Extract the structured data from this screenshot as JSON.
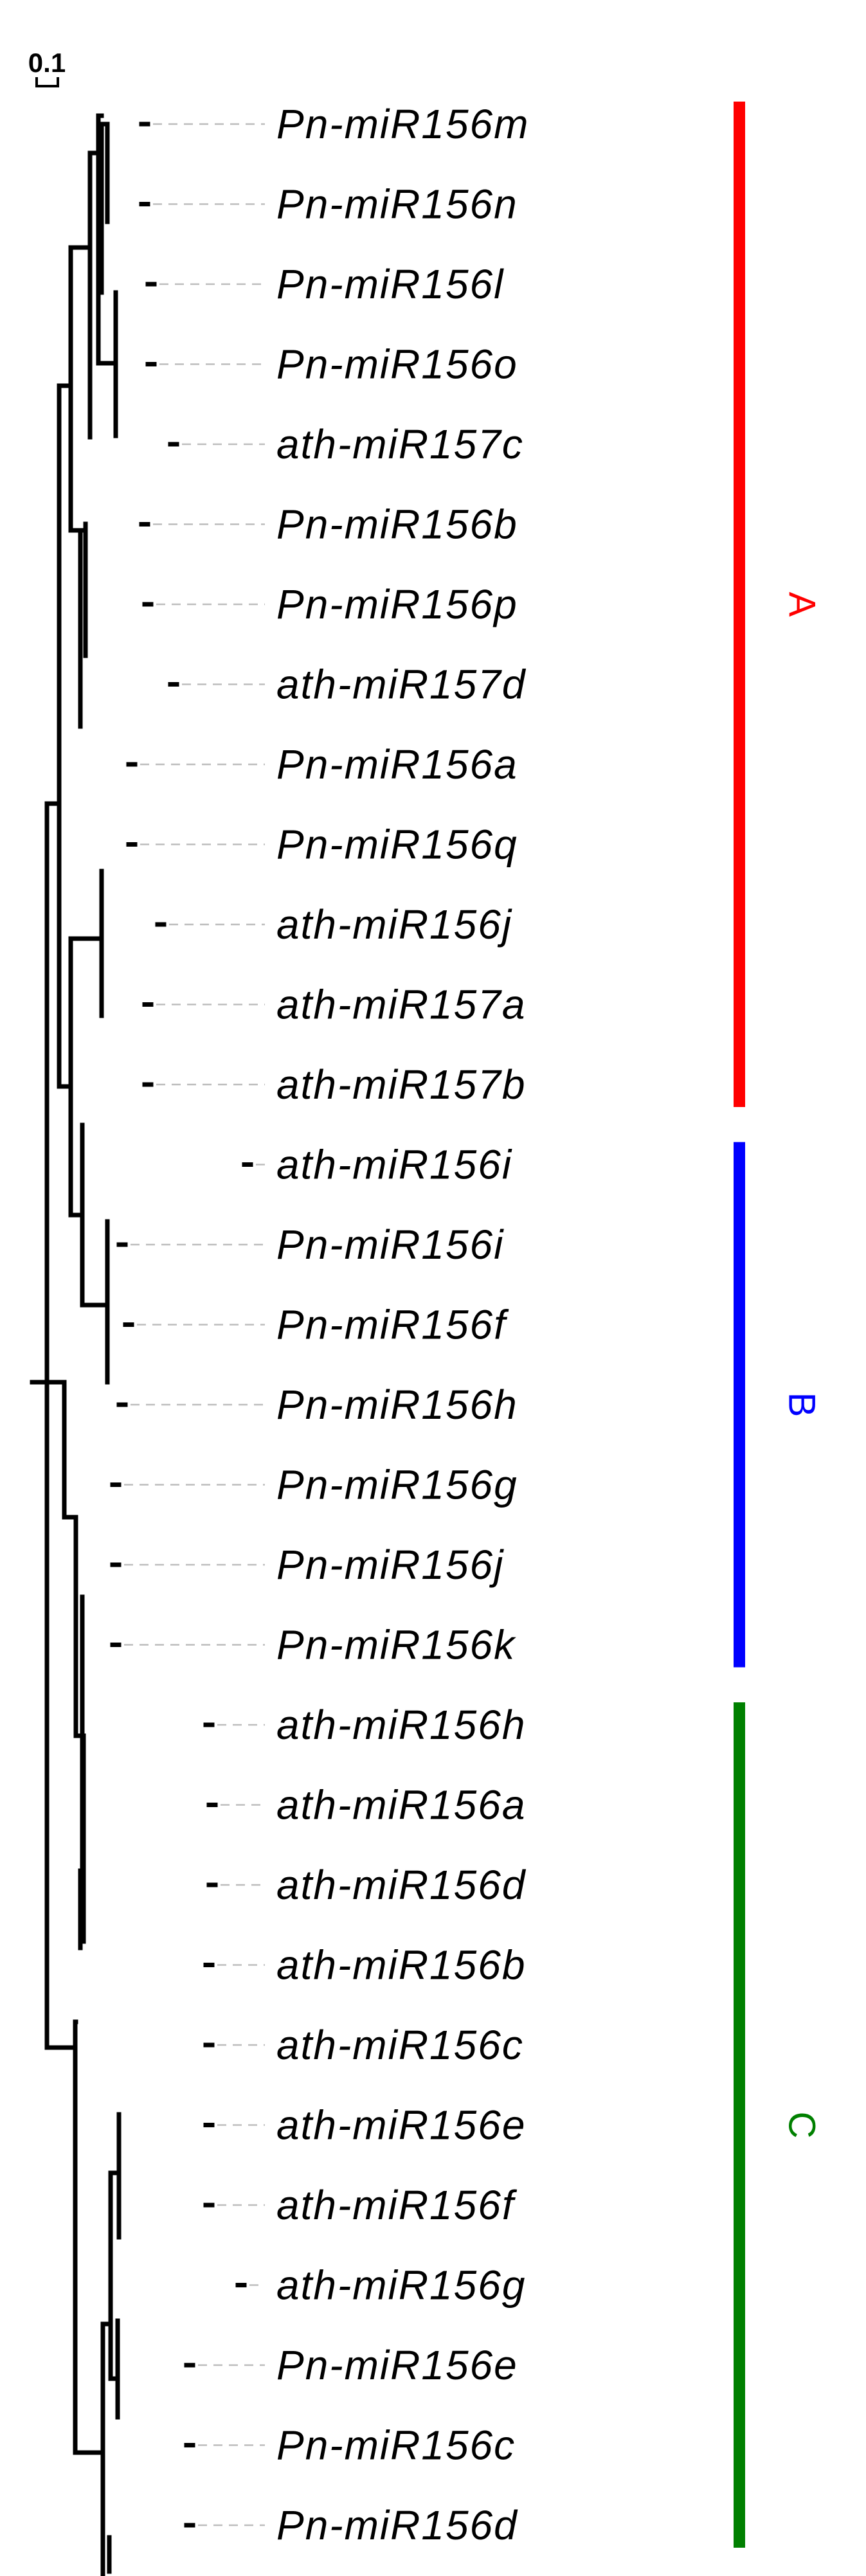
{
  "scale_bar": {
    "label": "0.1"
  },
  "leaves": [
    "Pn-miR156m",
    "Pn-miR156n",
    "Pn-miR156l",
    "Pn-miR156o",
    "ath-miR157c",
    "Pn-miR156b",
    "Pn-miR156p",
    "ath-miR157d",
    "Pn-miR156a",
    "Pn-miR156q",
    "ath-miR156j",
    "ath-miR157a",
    "ath-miR157b",
    "ath-miR156i",
    "Pn-miR156i",
    "Pn-miR156f",
    "Pn-miR156h",
    "Pn-miR156g",
    "Pn-miR156j",
    "Pn-miR156k",
    "ath-miR156h",
    "ath-miR156a",
    "ath-miR156d",
    "ath-miR156b",
    "ath-miR156c",
    "ath-miR156e",
    "ath-miR156f",
    "ath-miR156g",
    "Pn-miR156e",
    "Pn-miR156c",
    "Pn-miR156d"
  ],
  "clades": [
    {
      "label": "A",
      "color": "#ff0000",
      "first_leaf": 0,
      "last_leaf": 12
    },
    {
      "label": "B",
      "color": "#0000ff",
      "first_leaf": 13,
      "last_leaf": 19
    },
    {
      "label": "C",
      "color": "#008000",
      "first_leaf": 20,
      "last_leaf": 30
    }
  ]
}
